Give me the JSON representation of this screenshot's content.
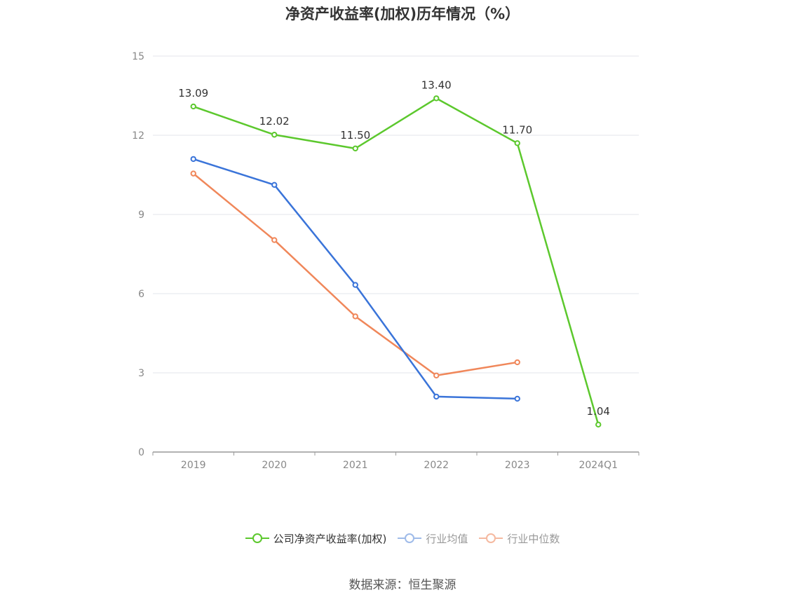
{
  "chart_data": {
    "type": "line",
    "title": "净资产收益率(加权)历年情况（%）",
    "categories": [
      "2019",
      "2020",
      "2021",
      "2022",
      "2023",
      "2024Q1"
    ],
    "ylim": [
      0,
      15
    ],
    "yticks": [
      "0",
      "3",
      "6",
      "9",
      "12",
      "15"
    ],
    "grid": true,
    "legend_position": "bottom",
    "series": [
      {
        "name": "公司净资产收益率(加权)",
        "color": "#5cc82d",
        "values": [
          13.09,
          12.02,
          11.5,
          13.4,
          11.7,
          1.04
        ],
        "labels": [
          "13.09",
          "12.02",
          "11.50",
          "13.40",
          "11.70",
          "1.04"
        ]
      },
      {
        "name": "行业均值",
        "color": "#3a74d9",
        "values": [
          11.1,
          10.12,
          6.33,
          2.1,
          2.02,
          null
        ]
      },
      {
        "name": "行业中位数",
        "color": "#f0875a",
        "values": [
          10.55,
          8.03,
          5.14,
          2.9,
          3.4,
          null
        ]
      }
    ]
  },
  "legend": {
    "items": [
      {
        "label": "公司净资产收益率(加权)",
        "color": "#5cc82d",
        "active": true
      },
      {
        "label": "行业均值",
        "color": "#9fbbe9",
        "active": false
      },
      {
        "label": "行业中位数",
        "color": "#f5b9a0",
        "active": false
      }
    ]
  },
  "source": "数据来源：恒生聚源"
}
